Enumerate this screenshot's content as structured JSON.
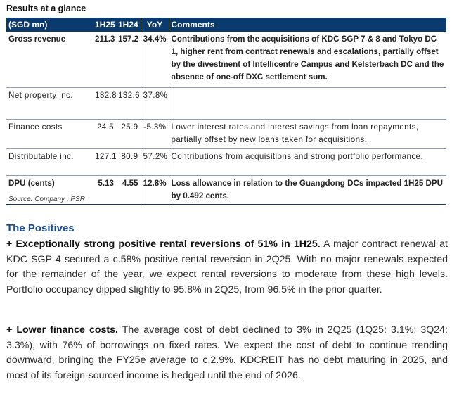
{
  "title": "Results at a glance",
  "table": {
    "headers": [
      "(SGD mn)",
      "1H25",
      "1H24",
      "YoY",
      "Comments"
    ],
    "rows": [
      {
        "label": "Gross revenue",
        "h25": "211.3",
        "h24": "157.2",
        "yoy": "34.4%",
        "comment": "Contributions from the acquisitions of KDC SGP 7 & 8 and Tokyo DC 1, higher rent from contract renewals and escalations, partially offset by the divestment of Intellicentre Campus and Kelsterbach DC and the absence of one-off DXC settlement sum."
      },
      {
        "label": "Net property inc.",
        "h25": "182.8",
        "h24": "132.6",
        "yoy": "37.8%",
        "comment": ""
      },
      {
        "label": "Finance costs",
        "h25": "24.5",
        "h24": "25.9",
        "yoy": "-5.3%",
        "comment": "Lower interest rates and interest savings from loan repayments, partially offset by new loans taken for acquisitions."
      },
      {
        "label": "Distributable inc.",
        "h25": "127.1",
        "h24": "80.9",
        "yoy": "57.2%",
        "comment": "Contributions from acquisitions and strong portfolio performance."
      },
      {
        "label": "DPU (cents)",
        "h25": "5.13",
        "h24": "4.55",
        "yoy": "12.8%",
        "comment": "Loss allowance in relation to the Guangdong DCs impacted 1H25 DPU by 0.492 cents."
      }
    ]
  },
  "source": "Source: Company , PSR",
  "positives": {
    "heading": "The Positives",
    "p1": {
      "lead": "+ Exceptionally strong positive rental reversions of 51% in 1H25.",
      "body": " A major contract renewal at KDC SGP 4 secured a c.58% positive rental reversion in 2Q25. With no major renewals expected for the remainder of the year, we expect rental reversions to moderate from these high levels. Portfolio occupancy dipped slightly to 95.8% in 2Q25, from 96.5% in the prior quarter."
    },
    "p2": {
      "lead": "+ Lower finance costs.",
      "body": " The average cost of debt declined to 3% in 2Q25 (1Q25: 3.1%; 3Q24: 3.3%), with 76% of borrowings on fixed rates. We expect the cost of debt to continue trending downward, bringing the FY25e average to c.2.9%. KDCREIT has no debt maturing in 2025, and most of its foreign-sourced income is hedged until the end of 2026."
    }
  },
  "colors": {
    "header_bg": "#0b3b6e",
    "heading_blue": "#1a4d8f"
  }
}
